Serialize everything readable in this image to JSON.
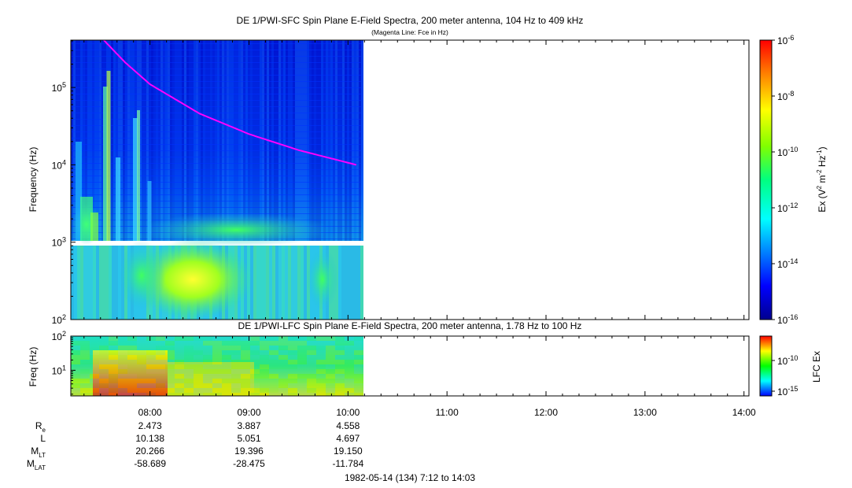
{
  "colors": {
    "fce_line": "#ff00ff",
    "frame": "#000000"
  },
  "chart_data": [
    {
      "type": "heatmap",
      "title": "DE 1/PWI-SFC  Spin Plane E-Field Spectra, 200 meter antenna, 104 Hz to 409 kHz",
      "subtitle": "(Magenta Line: Fce in Hz)",
      "ylabel": "Frequency (Hz)",
      "yscale": "log",
      "ylim": [
        100,
        409000
      ],
      "y_ticks": [
        {
          "value": 100,
          "base": "10",
          "exp": "2"
        },
        {
          "value": 1000,
          "base": "10",
          "exp": "3"
        },
        {
          "value": 10000,
          "base": "10",
          "exp": "4"
        },
        {
          "value": 100000,
          "base": "10",
          "exp": "5"
        }
      ],
      "data_x_end": "10:08",
      "colorbar": {
        "label_parts": {
          "a": "Ex (V",
          "b": "2",
          "c": " m",
          "d": "-2",
          "e": " Hz",
          "f": "-1",
          "g": ")"
        },
        "scale": "log",
        "range": [
          "1e-16",
          "1e-6"
        ],
        "ticks": [
          {
            "value": "1e-6",
            "base": "10",
            "exp": "-6"
          },
          {
            "value": "1e-8",
            "base": "10",
            "exp": "-8"
          },
          {
            "value": "1e-10",
            "base": "10",
            "exp": "-10"
          },
          {
            "value": "1e-12",
            "base": "10",
            "exp": "-12"
          },
          {
            "value": "1e-14",
            "base": "10",
            "exp": "-14"
          },
          {
            "value": "1e-16",
            "base": "10",
            "exp": "-16"
          }
        ]
      },
      "fce_line": {
        "name": "Fce",
        "points": [
          {
            "t": "07:32",
            "hz": 409000
          },
          {
            "t": "07:45",
            "hz": 210000
          },
          {
            "t": "08:00",
            "hz": 110000
          },
          {
            "t": "08:30",
            "hz": 46000
          },
          {
            "t": "09:00",
            "hz": 25000
          },
          {
            "t": "09:30",
            "hz": 15500
          },
          {
            "t": "10:05",
            "hz": 10000
          }
        ]
      }
    },
    {
      "type": "heatmap",
      "title": "DE 1/PWI-LFC  Spin Plane E-Field Spectra, 200 meter antenna, 1.78 Hz to 100 Hz",
      "ylabel": "Freq (Hz)",
      "yscale": "log",
      "ylim": [
        1.78,
        100
      ],
      "y_ticks": [
        {
          "value": 10,
          "base": "10",
          "exp": "1"
        },
        {
          "value": 100,
          "base": "10",
          "exp": "2"
        }
      ],
      "data_x_end": "10:08",
      "colorbar": {
        "label": "LFC Ex",
        "scale": "log",
        "ticks": [
          {
            "value": "1e-10",
            "base": "10",
            "exp": "-10"
          },
          {
            "value": "1e-15",
            "base": "10",
            "exp": "-15"
          }
        ]
      }
    }
  ],
  "time_axis": {
    "range": [
      "07:12",
      "14:03"
    ],
    "ticks": [
      "08:00",
      "09:00",
      "10:00",
      "11:00",
      "12:00",
      "13:00",
      "14:00"
    ]
  },
  "ephemeris": {
    "times": [
      "08:00",
      "09:00",
      "10:00"
    ],
    "rows": [
      {
        "label": "R",
        "sub": "e",
        "values": [
          "2.473",
          "3.887",
          "4.558"
        ]
      },
      {
        "label": "L",
        "sub": "",
        "values": [
          "10.138",
          "5.051",
          "4.697"
        ]
      },
      {
        "label": "M",
        "sub": "LT",
        "values": [
          "20.266",
          "19.396",
          "19.150"
        ]
      },
      {
        "label": "M",
        "sub": "LAT",
        "values": [
          "-58.689",
          "-28.475",
          "-11.784"
        ]
      }
    ]
  },
  "footer": "1982-05-14 (134) 7:12 to 14:03"
}
